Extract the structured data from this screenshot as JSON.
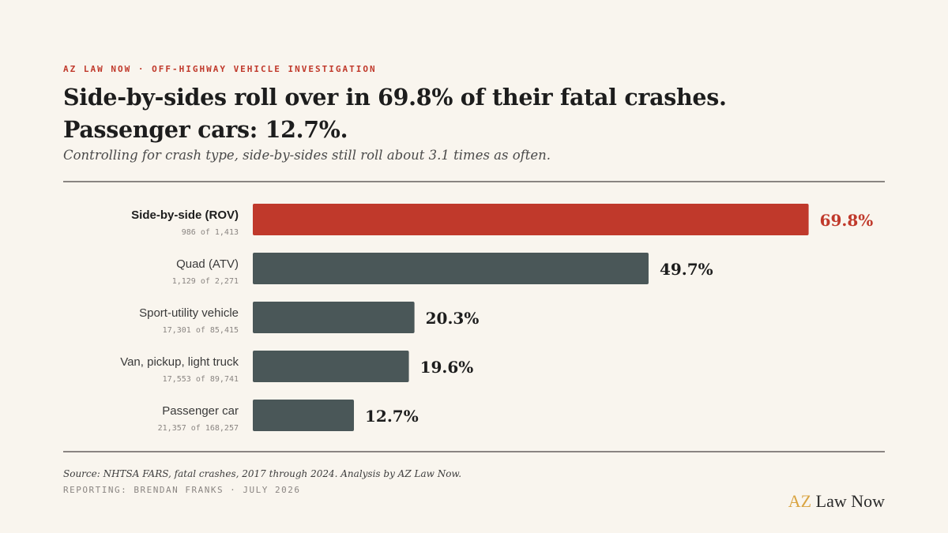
{
  "header": {
    "kicker": "AZ LAW NOW · OFF-HIGHWAY VEHICLE INVESTIGATION",
    "title_line1": "Side-by-sides roll over in 69.8% of their fatal crashes.",
    "title_line2": "Passenger cars: 12.7%.",
    "subtitle": "Controlling for crash type, side-by-sides still roll about 3.1 times as often."
  },
  "chart_data": {
    "type": "bar",
    "orientation": "horizontal",
    "title": "Side-by-sides roll over in 69.8% of their fatal crashes. Passenger cars: 12.7%.",
    "xlim": [
      0,
      100
    ],
    "highlight_color": "#c0392b",
    "bar_color": "#4a5758",
    "categories": [
      "Side-by-side (ROV)",
      "Quad (ATV)",
      "Sport-utility vehicle",
      "Van, pickup, light truck",
      "Passenger car"
    ],
    "values": [
      69.8,
      49.7,
      20.3,
      19.6,
      12.7
    ],
    "value_labels": [
      "69.8%",
      "49.7%",
      "20.3%",
      "19.6%",
      "12.7%"
    ],
    "counts": [
      "986 of 1,413",
      "1,129 of 2,271",
      "17,301 of 85,415",
      "17,553 of 89,741",
      "21,357 of 168,257"
    ],
    "highlighted": [
      true,
      false,
      false,
      false,
      false
    ]
  },
  "footer": {
    "source": "Source: NHTSA FARS, fatal crashes, 2017 through 2024. Analysis by AZ Law Now.",
    "byline": "REPORTING: BRENDAN FRANKS · JULY 2026",
    "brand_az": "AZ",
    "brand_rest": "Law Now"
  }
}
